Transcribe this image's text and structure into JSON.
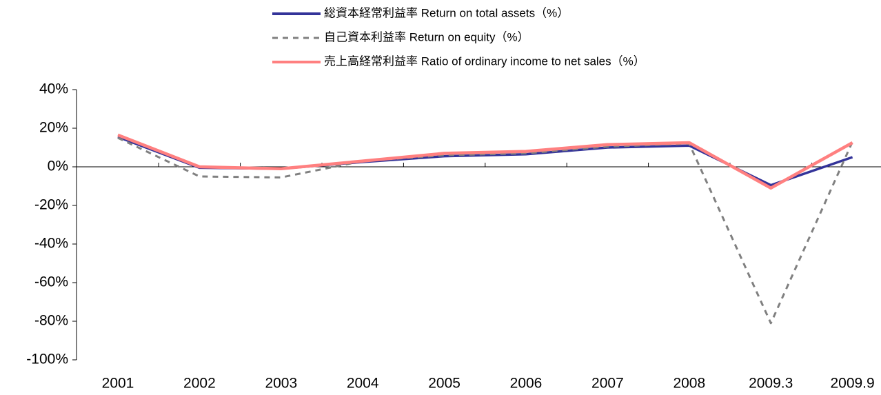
{
  "chart_data": {
    "type": "line",
    "categories": [
      "2001",
      "2002",
      "2003",
      "2004",
      "2005",
      "2006",
      "2007",
      "2008",
      "2009.3",
      "2009.9"
    ],
    "series": [
      {
        "name": "総資本経常利益率  Return on total assets（%）",
        "color": "#333399",
        "dash": "solid",
        "values": [
          15.5,
          -0.5,
          -1,
          2.5,
          5.5,
          6.5,
          10,
          11,
          -9.5,
          5
        ]
      },
      {
        "name": "自己資本利益率   Return on equity（%）",
        "color": "#808080",
        "dash": "dashed",
        "values": [
          15,
          -5,
          -5.5,
          3,
          6,
          7,
          10.5,
          12,
          -81,
          13
        ]
      },
      {
        "name": "売上高経常利益率  Ratio of ordinary income to net sales（%）",
        "color": "#ff8080",
        "dash": "solid",
        "values": [
          16.5,
          0,
          -1,
          3,
          7,
          8,
          11.5,
          12.5,
          -11,
          12.5
        ]
      }
    ],
    "ylim": [
      -100,
      40
    ],
    "yticks": [
      {
        "value": -100,
        "label": "-100%"
      },
      {
        "value": -80,
        "label": "-80%"
      },
      {
        "value": -60,
        "label": "-60%"
      },
      {
        "value": -40,
        "label": "-40%"
      },
      {
        "value": -20,
        "label": "-20%"
      },
      {
        "value": 0,
        "label": "0%"
      },
      {
        "value": 20,
        "label": "20%"
      },
      {
        "value": 40,
        "label": "40%"
      }
    ],
    "grid": false,
    "legend": "top"
  }
}
